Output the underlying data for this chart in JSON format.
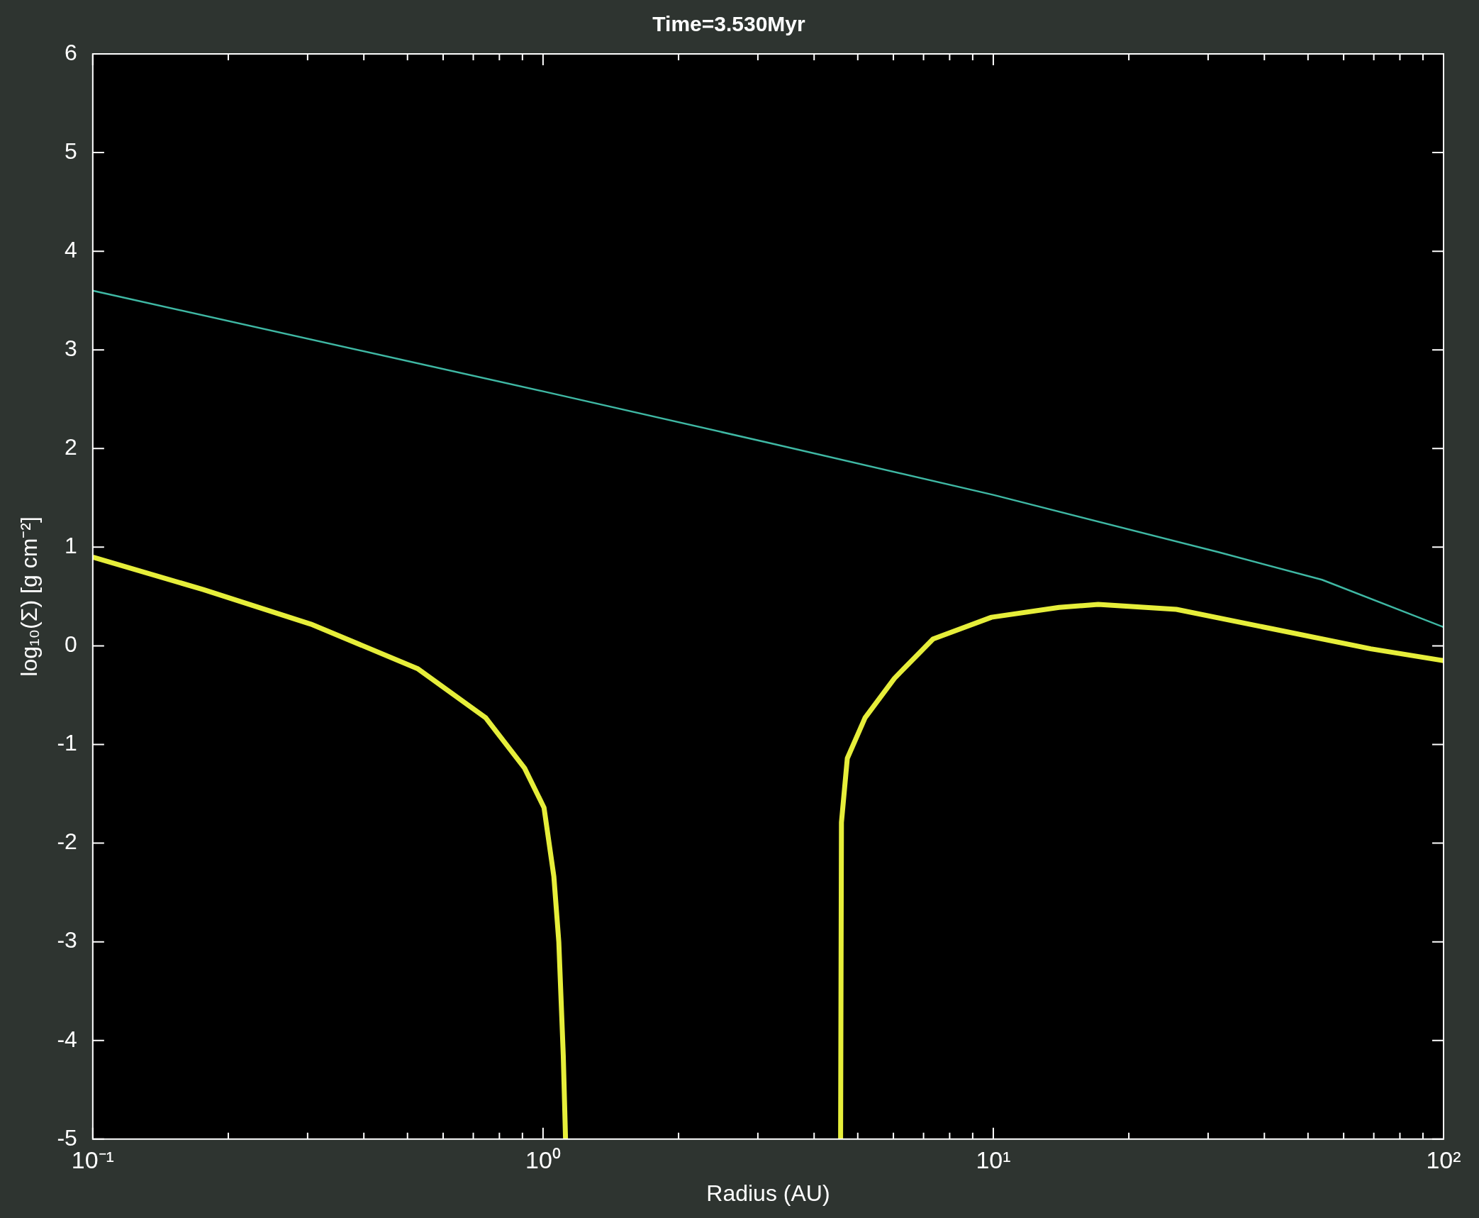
{
  "chart_data": {
    "type": "line",
    "title": "Time=3.530Myr",
    "xlabel": "Radius (AU)",
    "ylabel": "log₁₀(Σ) [g cm⁻²]",
    "log": "x",
    "xlim": [
      0.1,
      100
    ],
    "ylim": [
      -5,
      6
    ],
    "xticks": [
      {
        "value": 0.1,
        "label": "10⁻¹"
      },
      {
        "value": 0.2,
        "label": null
      },
      {
        "value": 0.3,
        "label": null
      },
      {
        "value": 0.4,
        "label": null
      },
      {
        "value": 0.5,
        "label": null
      },
      {
        "value": 0.6,
        "label": null
      },
      {
        "value": 0.7,
        "label": null
      },
      {
        "value": 0.8,
        "label": null
      },
      {
        "value": 0.9,
        "label": null
      },
      {
        "value": 1,
        "label": "10⁰"
      },
      {
        "value": 2,
        "label": null
      },
      {
        "value": 3,
        "label": null
      },
      {
        "value": 4,
        "label": null
      },
      {
        "value": 5,
        "label": null
      },
      {
        "value": 6,
        "label": null
      },
      {
        "value": 7,
        "label": null
      },
      {
        "value": 8,
        "label": null
      },
      {
        "value": 9,
        "label": null
      },
      {
        "value": 10,
        "label": "10¹"
      },
      {
        "value": 20,
        "label": null
      },
      {
        "value": 30,
        "label": null
      },
      {
        "value": 40,
        "label": null
      },
      {
        "value": 50,
        "label": null
      },
      {
        "value": 60,
        "label": null
      },
      {
        "value": 70,
        "label": null
      },
      {
        "value": 80,
        "label": null
      },
      {
        "value": 90,
        "label": null
      },
      {
        "value": 100,
        "label": "10²"
      }
    ],
    "yticks": [
      -5,
      -4,
      -3,
      -2,
      -1,
      0,
      1,
      2,
      3,
      4,
      5,
      6
    ],
    "series": [
      {
        "color": "#3fb8a4",
        "x": [
          0.1,
          1,
          3.16,
          10,
          31.6,
          53.7,
          100
        ],
        "values": [
          3.6,
          2.58,
          2.06,
          1.53,
          0.95,
          0.67,
          0.19
        ]
      },
      {
        "color": "#e6ee3a",
        "x": [
          0.1,
          0.176,
          0.305,
          0.526,
          0.746,
          0.91,
          1.005,
          1.057,
          1.084,
          1.109,
          1.122,
          2,
          4.58,
          4.6,
          4.74,
          5.19,
          6.03,
          7.35,
          9.91,
          14,
          17.1,
          25.5,
          41.9,
          68.9,
          100
        ],
        "values": [
          0.9,
          0.57,
          0.22,
          -0.23,
          -0.73,
          -1.24,
          -1.64,
          -2.34,
          -3.0,
          -4.15,
          -5,
          null,
          -5,
          -1.79,
          -1.14,
          -0.73,
          -0.33,
          0.07,
          0.29,
          0.39,
          0.42,
          0.37,
          0.17,
          -0.03,
          -0.15
        ]
      }
    ]
  }
}
